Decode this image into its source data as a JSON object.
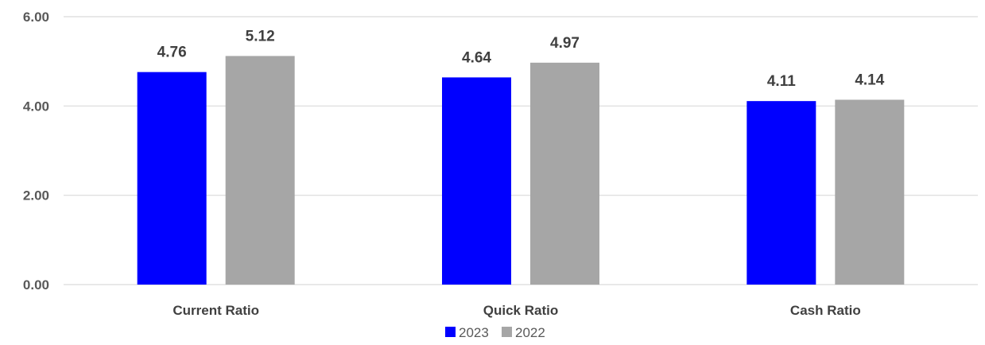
{
  "chart_data": {
    "type": "bar",
    "categories": [
      "Current Ratio",
      "Quick Ratio",
      "Cash Ratio"
    ],
    "series": [
      {
        "name": "2023",
        "values": [
          4.76,
          4.64,
          4.11
        ],
        "color": "#0000ff"
      },
      {
        "name": "2022",
        "values": [
          5.12,
          4.97,
          4.14
        ],
        "color": "#a6a6a6"
      }
    ],
    "data_labels": [
      [
        "4.76",
        "4.64",
        "4.11"
      ],
      [
        "5.12",
        "4.97",
        "4.14"
      ]
    ],
    "yticks": [
      "0.00",
      "2.00",
      "4.00",
      "6.00"
    ],
    "ylim": [
      0,
      6
    ],
    "grid": true,
    "legend_position": "bottom",
    "title": "",
    "xlabel": "",
    "ylabel": ""
  }
}
